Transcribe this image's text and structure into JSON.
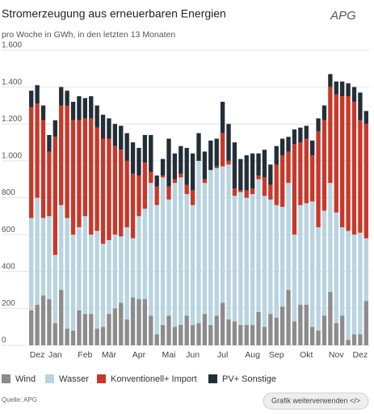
{
  "logo": "APG",
  "source": "Quelle: APG",
  "button": "Grafik weiterverwenden </>",
  "chart_data": {
    "type": "stacked_bar",
    "title": "Stromerzeugung aus erneuerbaren Energien",
    "subtitle": "pro Woche in GWh, in den letzten 13 Monaten",
    "categories": [
      null,
      "Dez",
      null,
      null,
      "Jan",
      null,
      null,
      null,
      null,
      "Feb",
      null,
      null,
      null,
      "Mär",
      null,
      null,
      null,
      null,
      "Apr",
      null,
      null,
      null,
      null,
      "Mai",
      null,
      null,
      null,
      "Jun",
      null,
      null,
      null,
      null,
      "Jul",
      null,
      null,
      null,
      null,
      "Aug",
      null,
      null,
      null,
      "Sep",
      null,
      null,
      null,
      null,
      "Okt",
      null,
      null,
      null,
      null,
      "Nov",
      null,
      null,
      null,
      "Dez",
      null
    ],
    "ylim": [
      0,
      1600
    ],
    "yticks": [
      0,
      200,
      400,
      600,
      800,
      {
        "value": 1000,
        "label": "1.000"
      },
      {
        "value": 1200,
        "label": "1.200"
      },
      {
        "value": 1400,
        "label": "1.400"
      },
      {
        "value": 1600,
        "label": "1.600"
      }
    ],
    "grid": true,
    "legend": "bottom",
    "series": [
      {
        "name": "Wind",
        "color": "#8c8c8c",
        "values": [
          190,
          220,
          270,
          250,
          120,
          300,
          90,
          80,
          190,
          170,
          170,
          90,
          100,
          170,
          200,
          230,
          140,
          260,
          250,
          250,
          160,
          60,
          110,
          160,
          100,
          110,
          160,
          110,
          120,
          170,
          110,
          160,
          230,
          140,
          130,
          110,
          110,
          110,
          180,
          100,
          170,
          150,
          210,
          300,
          130,
          220,
          220,
          100,
          80,
          160,
          290,
          120,
          160,
          30,
          60,
          60,
          240
        ]
      },
      {
        "name": "Wasser",
        "color": "#b9d3e0",
        "values": [
          500,
          580,
          420,
          450,
          370,
          460,
          600,
          520,
          450,
          530,
          430,
          530,
          450,
          400,
          400,
          360,
          500,
          320,
          450,
          490,
          720,
          700,
          800,
          630,
          780,
          800,
          660,
          650,
          880,
          710,
          840,
          800,
          740,
          840,
          680,
          720,
          690,
          710,
          720,
          710,
          620,
          610,
          540,
          580,
          470,
          540,
          550,
          680,
          560,
          570,
          590,
          600,
          480,
          590,
          540,
          550,
          340
        ]
      },
      {
        "name": "Konventionell+ Import",
        "color": "#c8382a",
        "values": [
          600,
          510,
          530,
          350,
          640,
          540,
          610,
          620,
          580,
          530,
          630,
          560,
          570,
          550,
          480,
          470,
          360,
          350,
          220,
          250,
          60,
          100,
          10,
          70,
          20,
          20,
          50,
          80,
          0,
          20,
          0,
          10,
          180,
          20,
          40,
          10,
          40,
          30,
          20,
          100,
          80,
          220,
          280,
          170,
          490,
          340,
          350,
          250,
          520,
          490,
          520,
          640,
          710,
          730,
          720,
          610,
          620
        ]
      },
      {
        "name": "PV+ Sonstige",
        "color": "#232e38",
        "values": [
          90,
          100,
          80,
          90,
          90,
          100,
          80,
          100,
          130,
          110,
          120,
          120,
          130,
          110,
          120,
          130,
          150,
          170,
          150,
          150,
          200,
          60,
          90,
          260,
          140,
          150,
          200,
          200,
          150,
          150,
          160,
          150,
          170,
          200,
          250,
          170,
          190,
          190,
          120,
          150,
          110,
          100,
          90,
          80,
          80,
          80,
          70,
          80,
          70,
          80,
          70,
          70,
          80,
          70,
          80,
          150,
          70
        ]
      }
    ]
  }
}
